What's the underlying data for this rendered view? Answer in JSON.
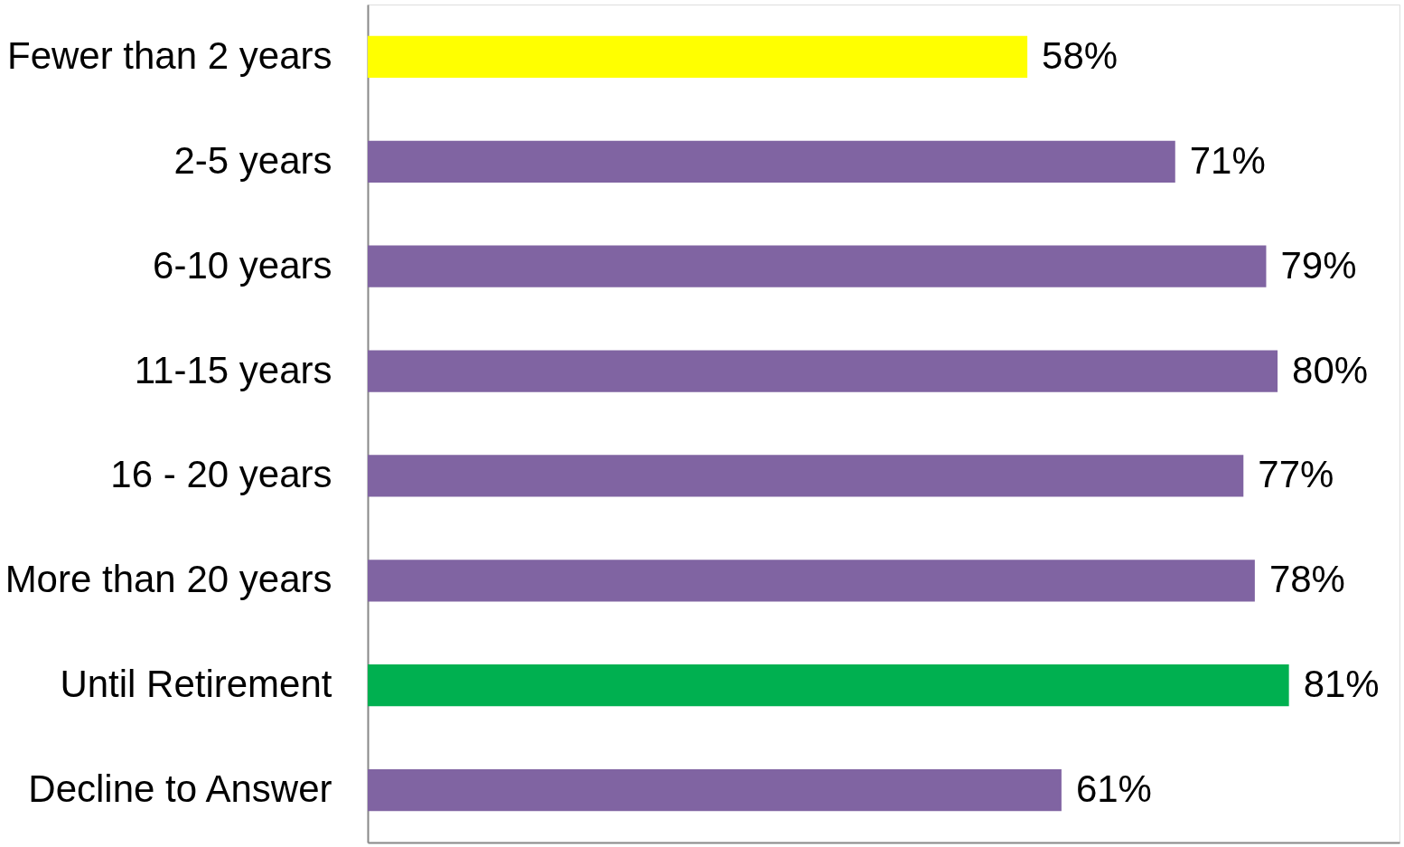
{
  "chart_data": {
    "type": "bar",
    "orientation": "horizontal",
    "categories": [
      "Fewer than 2 years",
      "2-5 years",
      "6-10 years",
      "11-15 years",
      "16 - 20 years",
      "More than 20 years",
      "Until Retirement",
      "Decline to Answer"
    ],
    "values": [
      58,
      71,
      79,
      80,
      77,
      78,
      81,
      61
    ],
    "value_labels": [
      "58%",
      "71%",
      "79%",
      "80%",
      "77%",
      "78%",
      "81%",
      "61%"
    ],
    "colors": [
      "#ffff00",
      "#8064a2",
      "#8064a2",
      "#8064a2",
      "#8064a2",
      "#8064a2",
      "#00b050",
      "#8064a2"
    ],
    "tick_labels": "y"
  }
}
